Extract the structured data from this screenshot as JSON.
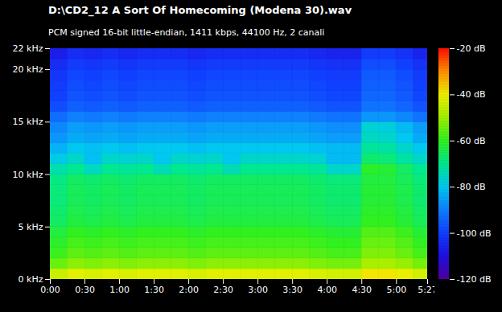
{
  "chart_data": {
    "type": "heatmap",
    "title": "D:\\CD2_12 A Sort Of Homecoming (Modena 30).wav",
    "subtitle": "PCM signed 16-bit little-endian, 1411 kbps, 44100 Hz, 2 canali",
    "xlim": [
      0,
      327
    ],
    "xticks": [
      {
        "value": 0,
        "label": "0:00"
      },
      {
        "value": 30,
        "label": "0:30"
      },
      {
        "value": 60,
        "label": "1:00"
      },
      {
        "value": 90,
        "label": "1:30"
      },
      {
        "value": 120,
        "label": "2:00"
      },
      {
        "value": 150,
        "label": "2:30"
      },
      {
        "value": 180,
        "label": "3:00"
      },
      {
        "value": 210,
        "label": "3:30"
      },
      {
        "value": 240,
        "label": "4:00"
      },
      {
        "value": 270,
        "label": "4:30"
      },
      {
        "value": 300,
        "label": "5:00"
      },
      {
        "value": 327,
        "label": "5:27"
      }
    ],
    "ylim": [
      0,
      22
    ],
    "yticks": [
      {
        "value": 0,
        "label": "0 kHz"
      },
      {
        "value": 5,
        "label": "5 kHz"
      },
      {
        "value": 10,
        "label": "10 kHz"
      },
      {
        "value": 15,
        "label": "15 kHz"
      },
      {
        "value": 20,
        "label": "20 kHz"
      },
      {
        "value": 22,
        "label": "22 kHz"
      }
    ],
    "time_bins": [
      0,
      15,
      30,
      45,
      60,
      75,
      90,
      105,
      120,
      135,
      150,
      165,
      180,
      195,
      210,
      225,
      240,
      255,
      270,
      285,
      300,
      315,
      327
    ],
    "freq_bins": [
      0,
      1,
      2,
      3,
      4,
      5,
      6,
      7,
      8,
      9,
      10,
      11,
      12,
      13,
      14,
      15,
      16,
      17,
      18,
      19,
      20,
      21,
      22
    ],
    "cells": [
      [
        -45,
        -42,
        -43,
        -42,
        -43,
        -42,
        -42,
        -42,
        -43,
        -42,
        -42,
        -42,
        -42,
        -42,
        -42,
        -43,
        -44,
        -44,
        -39,
        -39,
        -41,
        -44
      ],
      [
        -55,
        -52,
        -53,
        -52,
        -53,
        -52,
        -52,
        -52,
        -53,
        -52,
        -52,
        -52,
        -52,
        -52,
        -52,
        -53,
        -54,
        -54,
        -49,
        -49,
        -51,
        -54
      ],
      [
        -59,
        -56,
        -57,
        -56,
        -57,
        -56,
        -56,
        -56,
        -57,
        -56,
        -56,
        -56,
        -56,
        -56,
        -56,
        -57,
        -58,
        -58,
        -53,
        -53,
        -55,
        -58
      ],
      [
        -61,
        -58,
        -59,
        -58,
        -59,
        -58,
        -58,
        -58,
        -59,
        -58,
        -58,
        -58,
        -58,
        -58,
        -58,
        -59,
        -60,
        -60,
        -55,
        -55,
        -57,
        -60
      ],
      [
        -63,
        -60,
        -61,
        -60,
        -61,
        -60,
        -60,
        -60,
        -61,
        -60,
        -60,
        -60,
        -60,
        -60,
        -60,
        -61,
        -62,
        -62,
        -57,
        -57,
        -59,
        -62
      ],
      [
        -66,
        -63,
        -64,
        -63,
        -64,
        -63,
        -63,
        -63,
        -64,
        -63,
        -63,
        -63,
        -63,
        -63,
        -63,
        -64,
        -65,
        -65,
        -60,
        -60,
        -62,
        -65
      ],
      [
        -67,
        -64,
        -65,
        -64,
        -65,
        -64,
        -64,
        -64,
        -65,
        -64,
        -64,
        -64,
        -64,
        -64,
        -64,
        -65,
        -66,
        -66,
        -61,
        -61,
        -63,
        -66
      ],
      [
        -68,
        -65,
        -66,
        -65,
        -66,
        -65,
        -65,
        -65,
        -66,
        -65,
        -65,
        -65,
        -65,
        -65,
        -65,
        -66,
        -67,
        -67,
        -62,
        -62,
        -64,
        -67
      ],
      [
        -68,
        -65,
        -66,
        -65,
        -66,
        -65,
        -65,
        -65,
        -66,
        -65,
        -65,
        -65,
        -65,
        -65,
        -65,
        -66,
        -67,
        -67,
        -62,
        -62,
        -64,
        -67
      ],
      [
        -69,
        -66,
        -67,
        -66,
        -67,
        -66,
        -66,
        -66,
        -67,
        -66,
        -66,
        -66,
        -66,
        -66,
        -66,
        -67,
        -68,
        -68,
        -63,
        -63,
        -65,
        -68
      ],
      [
        -73,
        -70,
        -75,
        -70,
        -71,
        -70,
        -74,
        -70,
        -71,
        -70,
        -74,
        -70,
        -70,
        -70,
        -70,
        -71,
        -76,
        -76,
        -61,
        -62,
        -66,
        -70
      ],
      [
        -79,
        -76,
        -81,
        -76,
        -77,
        -76,
        -80,
        -76,
        -77,
        -76,
        -80,
        -76,
        -76,
        -76,
        -76,
        -77,
        -82,
        -82,
        -67,
        -68,
        -72,
        -76
      ],
      [
        -83,
        -80,
        -81,
        -80,
        -81,
        -80,
        -80,
        -80,
        -81,
        -80,
        -80,
        -80,
        -80,
        -80,
        -80,
        -81,
        -82,
        -82,
        -71,
        -72,
        -76,
        -80
      ],
      [
        -87,
        -84,
        -85,
        -84,
        -85,
        -84,
        -84,
        -84,
        -85,
        -84,
        -84,
        -84,
        -84,
        -84,
        -84,
        -85,
        -86,
        -86,
        -75,
        -76,
        -80,
        -84
      ],
      [
        -89,
        -86,
        -87,
        -86,
        -87,
        -86,
        -86,
        -86,
        -87,
        -86,
        -86,
        -86,
        -86,
        -86,
        -86,
        -87,
        -88,
        -88,
        -77,
        -78,
        -82,
        -86
      ],
      [
        -93,
        -90,
        -91,
        -90,
        -91,
        -90,
        -90,
        -90,
        -91,
        -90,
        -90,
        -90,
        -90,
        -90,
        -90,
        -91,
        -92,
        -92,
        -87,
        -87,
        -89,
        -92
      ],
      [
        -98,
        -95,
        -96,
        -95,
        -96,
        -95,
        -95,
        -95,
        -96,
        -95,
        -95,
        -95,
        -95,
        -95,
        -95,
        -96,
        -97,
        -97,
        -92,
        -92,
        -94,
        -97
      ],
      [
        -100,
        -97,
        -98,
        -97,
        -98,
        -97,
        -97,
        -97,
        -98,
        -97,
        -97,
        -97,
        -97,
        -97,
        -97,
        -98,
        -99,
        -99,
        -94,
        -94,
        -96,
        -99
      ],
      [
        -101,
        -98,
        -99,
        -98,
        -99,
        -98,
        -98,
        -98,
        -99,
        -98,
        -98,
        -98,
        -98,
        -98,
        -98,
        -99,
        -100,
        -100,
        -95,
        -95,
        -97,
        -100
      ],
      [
        -102,
        -99,
        -100,
        -99,
        -100,
        -99,
        -99,
        -99,
        -100,
        -99,
        -99,
        -99,
        -99,
        -99,
        -99,
        -100,
        -101,
        -101,
        -96,
        -96,
        -98,
        -101
      ],
      [
        -104,
        -101,
        -102,
        -101,
        -102,
        -101,
        -101,
        -101,
        -102,
        -101,
        -101,
        -101,
        -101,
        -101,
        -101,
        -102,
        -103,
        -103,
        -98,
        -98,
        -100,
        -103
      ],
      [
        -107,
        -104,
        -105,
        -104,
        -105,
        -104,
        -104,
        -104,
        -105,
        -104,
        -104,
        -104,
        -104,
        -104,
        -104,
        -105,
        -106,
        -106,
        -101,
        -101,
        -103,
        -106
      ]
    ],
    "colorbar_range": [
      -120,
      -20
    ],
    "colorbar_ticks": [
      {
        "value": -20,
        "label": "-20 dB"
      },
      {
        "value": -40,
        "label": "-40 dB"
      },
      {
        "value": -60,
        "label": "-60 dB"
      },
      {
        "value": -80,
        "label": "-80 dB"
      },
      {
        "value": -100,
        "label": "-100 dB"
      },
      {
        "value": -120,
        "label": "-120 dB"
      }
    ]
  }
}
